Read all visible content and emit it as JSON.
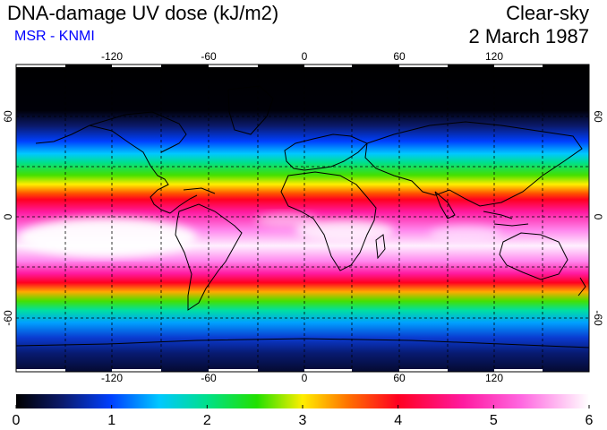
{
  "header": {
    "title": "DNA-damage UV dose (kJ/m2)",
    "source": "MSR - KNMI",
    "condition": "Clear-sky",
    "date": "2 March 1987"
  },
  "colors": {
    "source_text": "#0000ff",
    "gradient": [
      "#000000",
      "#0b1a6b",
      "#0040ff",
      "#00c8ff",
      "#00e08a",
      "#22e000",
      "#ffee00",
      "#ff7000",
      "#ff0020",
      "#ff1aa0",
      "#ff66e0",
      "#ffd6ff",
      "#ffffff"
    ]
  },
  "map": {
    "lon_ticks": [
      "-120",
      "-60",
      "0",
      "60",
      "120"
    ],
    "lat_ticks_left": [
      "60",
      "0",
      "-60"
    ],
    "lat_ticks_right": [
      "60",
      "0",
      "-60"
    ]
  },
  "colorbar": {
    "min": 0,
    "max": 6,
    "tick_labels": [
      "0",
      "1",
      "2",
      "3",
      "4",
      "5",
      "6"
    ]
  }
}
